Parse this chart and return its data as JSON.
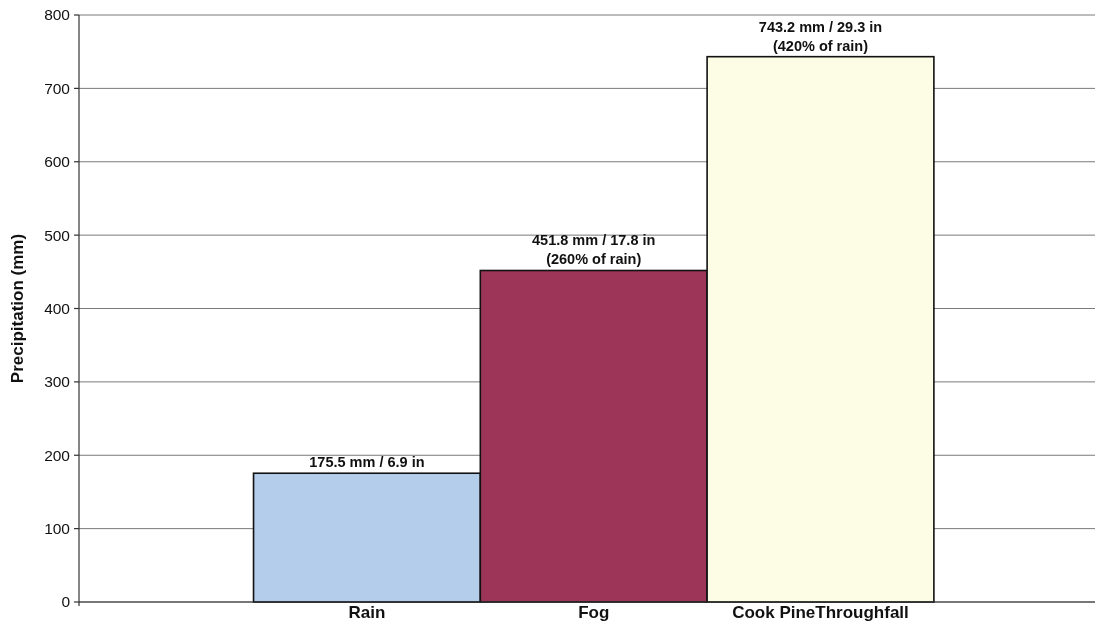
{
  "chart_data": {
    "type": "bar",
    "ylabel": "Precipitation (mm)",
    "categories": [
      "Rain",
      "Fog",
      "Cook PineThroughfall"
    ],
    "values": [
      175.5,
      451.8,
      743.2
    ],
    "colors": [
      "#b4cdea",
      "#9c3557",
      "#fdfde6"
    ],
    "value_labels": [
      "175.5 mm / 6.9 in",
      "451.8 mm / 17.8 in\n(260% of rain)",
      "743.2 mm / 29.3 in\n(420% of rain)"
    ],
    "ylim": [
      0,
      800
    ],
    "yticks": [
      0,
      100,
      200,
      300,
      400,
      500,
      600,
      700,
      800
    ],
    "grid": "y"
  }
}
